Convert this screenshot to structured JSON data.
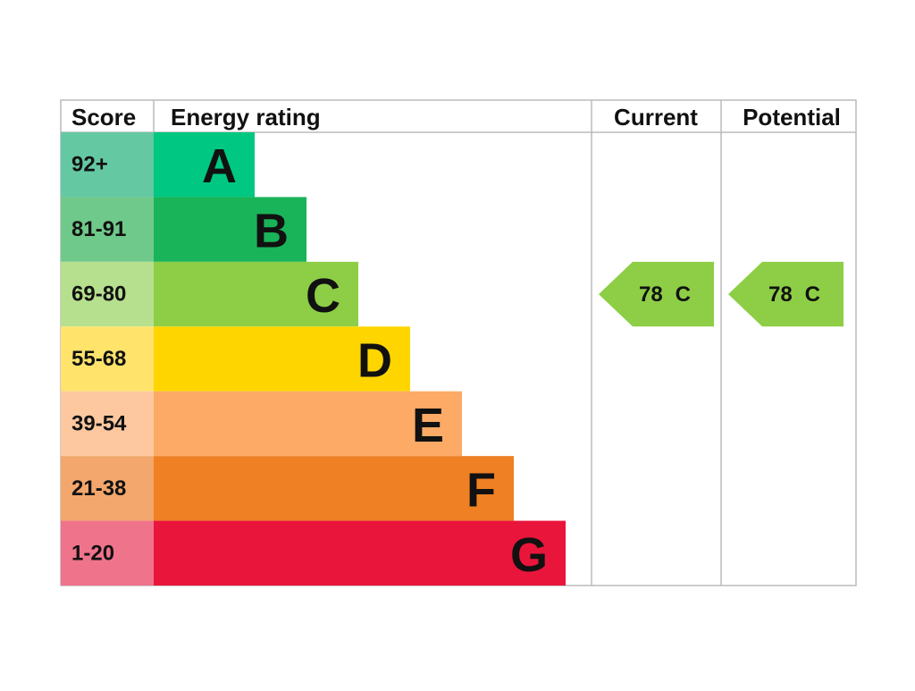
{
  "headers": {
    "score": "Score",
    "rating": "Energy rating",
    "current": "Current",
    "potential": "Potential"
  },
  "bands": [
    {
      "score": "92+",
      "letter": "A",
      "color": "#00c781",
      "score_color": "#64c8a3"
    },
    {
      "score": "81-91",
      "letter": "B",
      "color": "#19b459",
      "score_color": "#6fc98a"
    },
    {
      "score": "69-80",
      "letter": "C",
      "color": "#8dce46",
      "score_color": "#b6e08e"
    },
    {
      "score": "55-68",
      "letter": "D",
      "color": "#ffd500",
      "score_color": "#ffe36b"
    },
    {
      "score": "39-54",
      "letter": "E",
      "color": "#fcaa65",
      "score_color": "#fdc8a0"
    },
    {
      "score": "21-38",
      "letter": "F",
      "color": "#ef8023",
      "score_color": "#f3a76c"
    },
    {
      "score": "1-20",
      "letter": "G",
      "color": "#e9153b",
      "score_color": "#f0738c"
    }
  ],
  "current": {
    "score": 78,
    "band": "C"
  },
  "potential": {
    "score": 78,
    "band": "C"
  }
}
